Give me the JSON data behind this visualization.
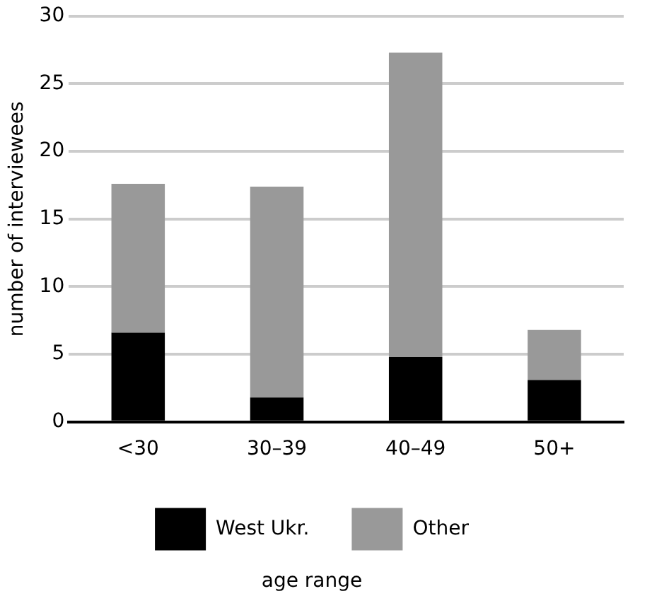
{
  "chart_data": {
    "type": "bar",
    "stacked": true,
    "annotations": [
      "age range"
    ],
    "ylabel": "number of interviewees",
    "categories": [
      "<30",
      "30–39",
      "40–49",
      "50+"
    ],
    "series": [
      {
        "name": "West Ukr.",
        "color": "#000000",
        "values": [
          6.6,
          1.8,
          4.8,
          3.1
        ]
      },
      {
        "name": "Other",
        "color": "#999999",
        "values": [
          11,
          15.6,
          22.5,
          3.7
        ]
      }
    ],
    "ylim": [
      0,
      30
    ],
    "yticks": [
      0,
      5,
      10,
      15,
      20,
      25,
      30
    ],
    "grid": "y",
    "legend": "bottom"
  }
}
